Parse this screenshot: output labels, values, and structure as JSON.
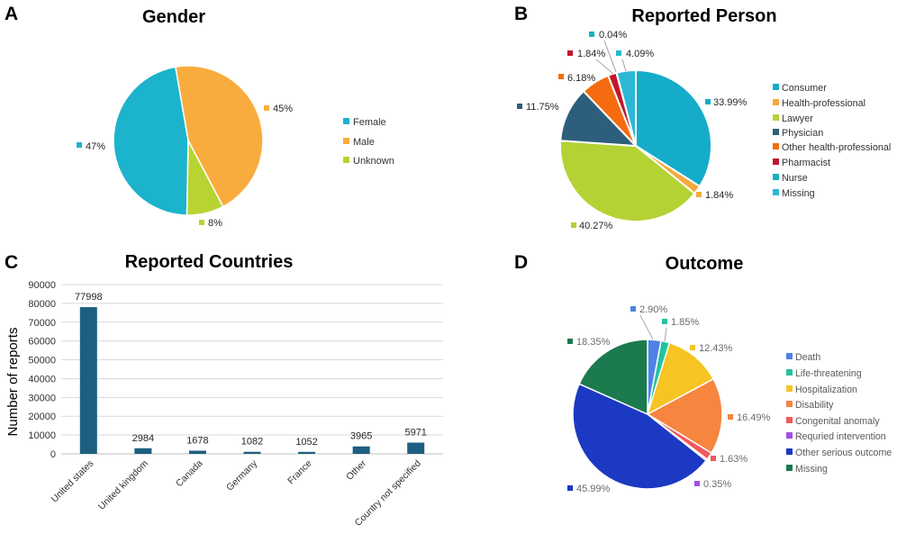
{
  "chart_data": [
    {
      "panel": "A",
      "type": "pie",
      "title": "Gender",
      "categories": [
        "Female",
        "Male",
        "Unknown"
      ],
      "values": [
        47,
        45,
        8
      ],
      "labels": [
        "47%",
        "45%",
        "8%"
      ],
      "colors": [
        "#1cb3cc",
        "#f9ac3e",
        "#b7d433"
      ],
      "legend": "right"
    },
    {
      "panel": "B",
      "type": "pie",
      "title": "Reported Person",
      "categories": [
        "Consumer",
        "Health-professional",
        "Lawyer",
        "Physician",
        "Other health-professional",
        "Pharmacist",
        "Nurse",
        "Missing"
      ],
      "values": [
        33.99,
        1.84,
        40.27,
        11.75,
        6.18,
        1.84,
        0.04,
        4.09
      ],
      "labels": [
        "33.99%",
        "1.84%",
        "40.27%",
        "11.75%",
        "6.18%",
        "1.84%",
        "0.04%",
        "4.09%"
      ],
      "colors": [
        "#15acc9",
        "#f5a83c",
        "#b5d234",
        "#2d5f7c",
        "#f46c0f",
        "#c1172d",
        "#16b2c2",
        "#2cb8d4"
      ],
      "legend": "right"
    },
    {
      "panel": "C",
      "type": "bar",
      "title": "Reported Countries",
      "categories": [
        "United states",
        "United kingdom",
        "Canada",
        "Germany",
        "France",
        "Other",
        "Country not specified"
      ],
      "values": [
        77998,
        2984,
        1678,
        1082,
        1052,
        3965,
        5971
      ],
      "ylabel": "Number of reports",
      "ylim": [
        0,
        90000
      ],
      "yticks": [
        0,
        10000,
        20000,
        30000,
        40000,
        50000,
        60000,
        70000,
        80000,
        90000
      ],
      "grid": true,
      "colors": [
        "#1d5f80"
      ]
    },
    {
      "panel": "D",
      "type": "pie",
      "title": "Outcome",
      "categories": [
        "Death",
        "Life-threatening",
        "Hospitalization",
        "Disability",
        "Congenital anomaly",
        "Requried intervention",
        "Other serious outcome",
        "Missing"
      ],
      "values": [
        2.9,
        1.85,
        12.43,
        16.49,
        1.63,
        0.35,
        45.99,
        18.35
      ],
      "labels": [
        "2.90%",
        "1.85%",
        "12.43%",
        "16.49%",
        "1.63%",
        "0.35%",
        "45.99%",
        "18.35%"
      ],
      "colors": [
        "#4f81e6",
        "#22c39d",
        "#f6c423",
        "#f6853f",
        "#ef5a5f",
        "#a34fe6",
        "#1b39c2",
        "#1c7a4f"
      ],
      "legend": "right"
    }
  ]
}
